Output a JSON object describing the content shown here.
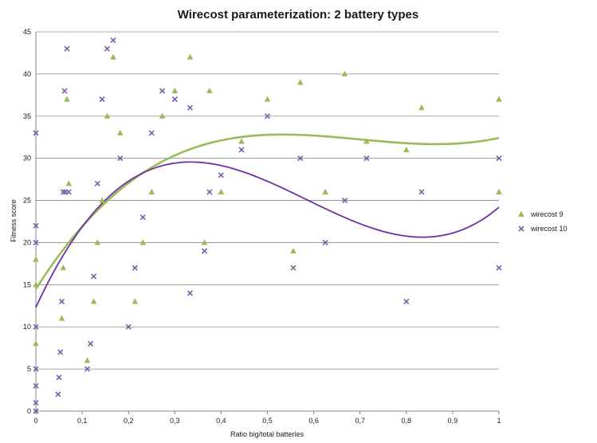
{
  "chart_data": {
    "type": "scatter",
    "title": "Wirecost parameterization: 2 battery types",
    "xlabel": "Ratio big/total batteries",
    "ylabel": "Fitness score",
    "xlim": [
      0,
      1
    ],
    "ylim": [
      0,
      45
    ],
    "x_ticks": [
      "0",
      "0,1",
      "0,2",
      "0,3",
      "0,4",
      "0,5",
      "0,6",
      "0,7",
      "0,8",
      "0,9",
      "1"
    ],
    "y_ticks": [
      "0",
      "5",
      "10",
      "15",
      "20",
      "25",
      "30",
      "35",
      "40",
      "45"
    ],
    "grid": "horizontal",
    "legend_position": "right",
    "series": [
      {
        "name": "wirecost 9",
        "marker": "triangle",
        "color": "#9bbb59",
        "trendline": "polynomial",
        "trend_color": "#9bbb59",
        "points": [
          [
            0,
            8
          ],
          [
            0,
            15
          ],
          [
            0,
            18
          ],
          [
            0.056,
            11
          ],
          [
            0.059,
            17
          ],
          [
            0.067,
            37
          ],
          [
            0.071,
            27
          ],
          [
            0.111,
            6
          ],
          [
            0.125,
            13
          ],
          [
            0.133,
            20
          ],
          [
            0.143,
            25
          ],
          [
            0.154,
            35
          ],
          [
            0.167,
            42
          ],
          [
            0.182,
            33
          ],
          [
            0.214,
            13
          ],
          [
            0.231,
            20
          ],
          [
            0.25,
            26
          ],
          [
            0.273,
            35
          ],
          [
            0.3,
            38
          ],
          [
            0.333,
            42
          ],
          [
            0.364,
            20
          ],
          [
            0.375,
            38
          ],
          [
            0.4,
            26
          ],
          [
            0.444,
            32
          ],
          [
            0.5,
            37
          ],
          [
            0.556,
            19
          ],
          [
            0.571,
            39
          ],
          [
            0.625,
            26
          ],
          [
            0.667,
            40
          ],
          [
            0.714,
            32
          ],
          [
            0.8,
            31
          ],
          [
            0.833,
            36
          ],
          [
            1,
            37
          ],
          [
            1,
            26
          ]
        ]
      },
      {
        "name": "wirecost 10",
        "marker": "x",
        "color": "#7a5ea8",
        "trendline": "polynomial",
        "trend_color": "#7030a0",
        "points": [
          [
            0,
            0
          ],
          [
            0,
            1
          ],
          [
            0,
            3
          ],
          [
            0,
            5
          ],
          [
            0,
            10
          ],
          [
            0,
            20
          ],
          [
            0,
            22
          ],
          [
            0,
            33
          ],
          [
            0.048,
            2
          ],
          [
            0.05,
            4
          ],
          [
            0.053,
            7
          ],
          [
            0.056,
            13
          ],
          [
            0.059,
            26
          ],
          [
            0.062,
            38
          ],
          [
            0.064,
            26
          ],
          [
            0.067,
            43
          ],
          [
            0.071,
            26
          ],
          [
            0.111,
            5
          ],
          [
            0.118,
            8
          ],
          [
            0.125,
            16
          ],
          [
            0.133,
            27
          ],
          [
            0.143,
            37
          ],
          [
            0.154,
            43
          ],
          [
            0.167,
            44
          ],
          [
            0.182,
            30
          ],
          [
            0.2,
            10
          ],
          [
            0.214,
            17
          ],
          [
            0.231,
            23
          ],
          [
            0.25,
            33
          ],
          [
            0.273,
            38
          ],
          [
            0.3,
            37
          ],
          [
            0.333,
            36
          ],
          [
            0.333,
            14
          ],
          [
            0.364,
            19
          ],
          [
            0.375,
            26
          ],
          [
            0.4,
            28
          ],
          [
            0.444,
            31
          ],
          [
            0.5,
            35
          ],
          [
            0.556,
            17
          ],
          [
            0.571,
            30
          ],
          [
            0.625,
            20
          ],
          [
            0.667,
            25
          ],
          [
            0.714,
            30
          ],
          [
            0.8,
            13
          ],
          [
            0.833,
            26
          ],
          [
            1,
            30
          ],
          [
            1,
            17
          ]
        ]
      }
    ]
  }
}
